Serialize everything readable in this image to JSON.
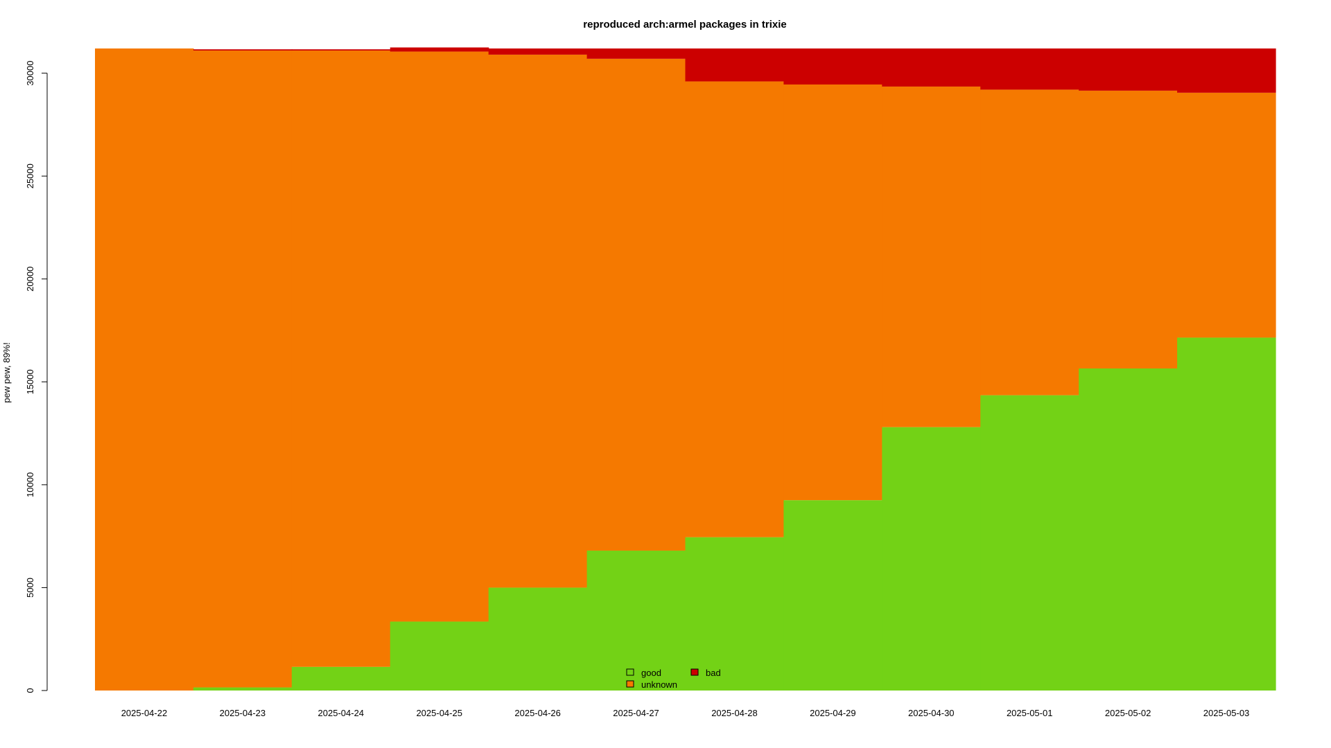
{
  "chart_data": {
    "type": "area",
    "stacked": true,
    "step": true,
    "title": "reproduced arch:armel packages in trixie",
    "xlabel": "",
    "ylabel": "pew pew, 89%!",
    "categories": [
      "2025-04-22",
      "2025-04-23",
      "2025-04-24",
      "2025-04-25",
      "2025-04-26",
      "2025-04-27",
      "2025-04-28",
      "2025-04-29",
      "2025-04-30",
      "2025-05-01",
      "2025-05-02",
      "2025-05-03"
    ],
    "series": [
      {
        "name": "good",
        "color": "#73d216",
        "values": [
          0,
          150,
          1150,
          3350,
          5000,
          6800,
          7450,
          9250,
          12800,
          14350,
          15650,
          17150
        ]
      },
      {
        "name": "unknown",
        "color": "#f57900",
        "values": [
          31200,
          30950,
          29950,
          27700,
          25900,
          23900,
          22150,
          20200,
          16550,
          14850,
          13500,
          11900
        ]
      },
      {
        "name": "bad",
        "color": "#cc0000",
        "values": [
          0,
          60,
          60,
          200,
          300,
          500,
          1600,
          1750,
          1850,
          2000,
          2050,
          2150
        ]
      }
    ],
    "ylim": [
      0,
      31200
    ],
    "yticks": [
      0,
      5000,
      10000,
      15000,
      20000,
      25000,
      30000
    ],
    "grid": false,
    "legend": {
      "position": "bottom-center",
      "entries": [
        {
          "label": "good",
          "color": "#73d216"
        },
        {
          "label": "bad",
          "color": "#cc0000"
        },
        {
          "label": "unknown",
          "color": "#f57900"
        }
      ]
    }
  }
}
